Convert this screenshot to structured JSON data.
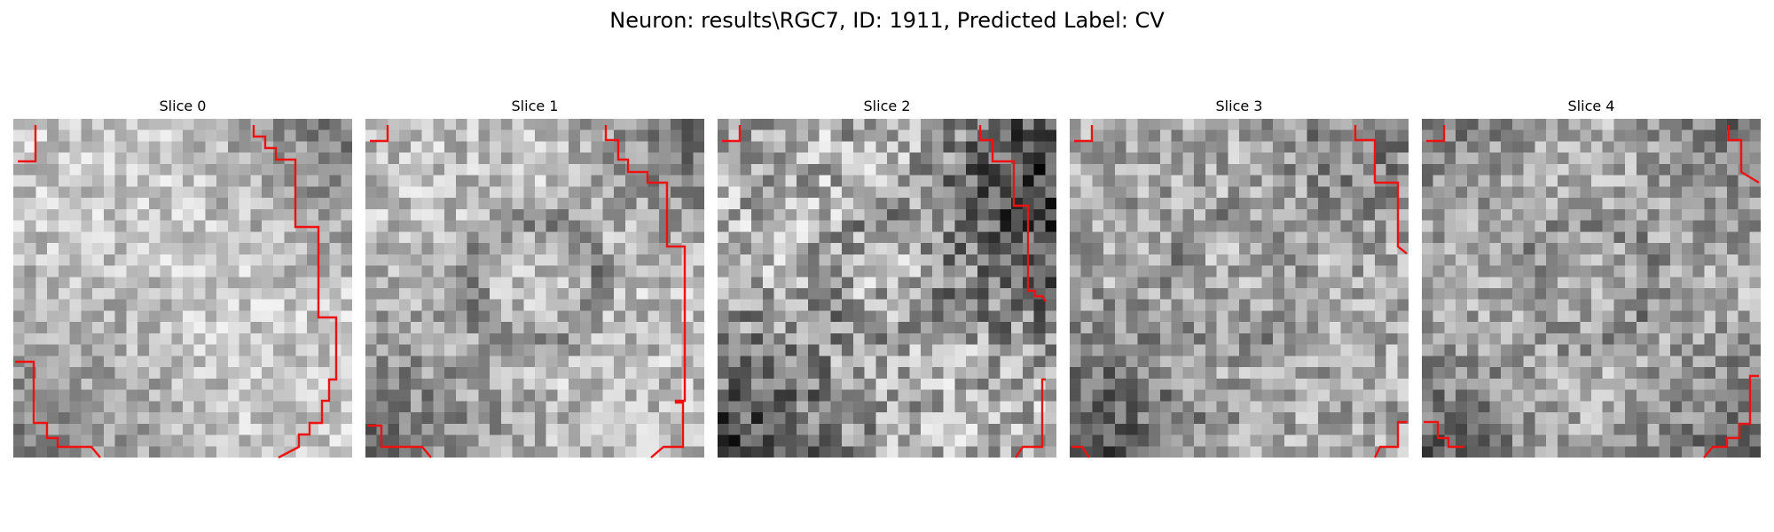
{
  "figure": {
    "title": "Neuron: results\\RGC7, ID: 1911, Predicted Label: CV"
  },
  "contour_color": "#ee1111",
  "slices": [
    {
      "title": "Slice 0"
    },
    {
      "title": "Slice 1"
    },
    {
      "title": "Slice 2"
    },
    {
      "title": "Slice 3"
    },
    {
      "title": "Slice 4"
    }
  ]
}
